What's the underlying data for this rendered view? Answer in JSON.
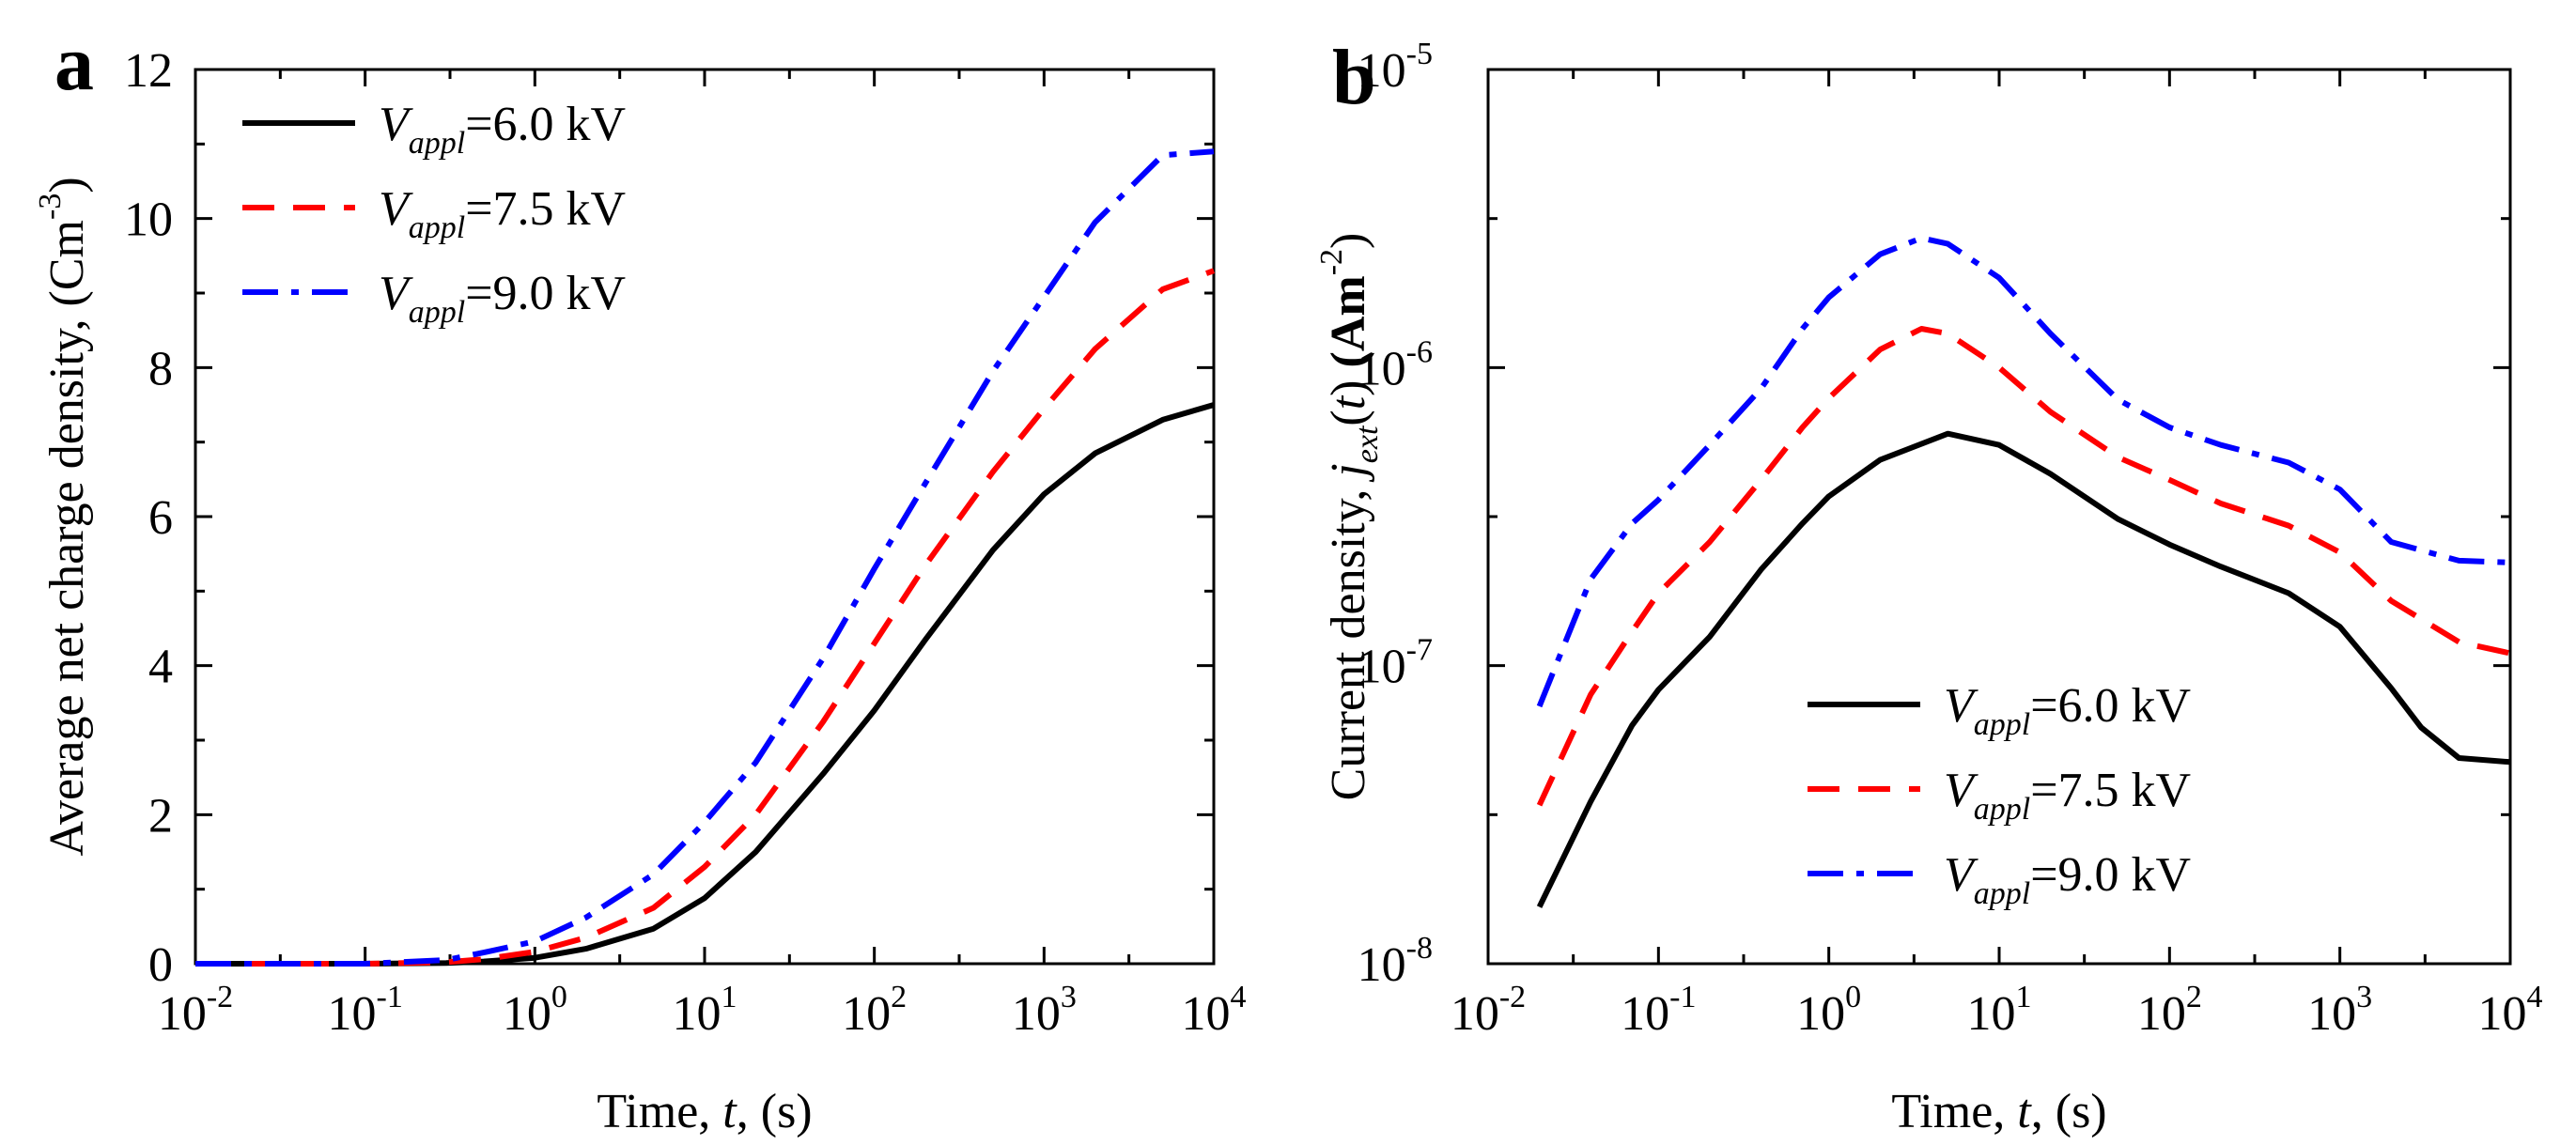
{
  "chart_data": [
    {
      "panel_label": "a",
      "type": "line",
      "xscale": "log",
      "xlim": [
        0.01,
        10000
      ],
      "ylim": [
        0,
        12
      ],
      "xticks": [
        {
          "value": 0.01,
          "base": "10",
          "exp": "-2"
        },
        {
          "value": 0.1,
          "base": "10",
          "exp": "-1"
        },
        {
          "value": 1,
          "base": "10",
          "exp": "0"
        },
        {
          "value": 10,
          "base": "10",
          "exp": "1"
        },
        {
          "value": 100,
          "base": "10",
          "exp": "2"
        },
        {
          "value": 1000,
          "base": "10",
          "exp": "3"
        },
        {
          "value": 10000,
          "base": "10",
          "exp": "4"
        }
      ],
      "yticks": [
        {
          "value": 0,
          "label": "0"
        },
        {
          "value": 2,
          "label": "2"
        },
        {
          "value": 4,
          "label": "4"
        },
        {
          "value": 6,
          "label": "6"
        },
        {
          "value": 8,
          "label": "8"
        },
        {
          "value": 10,
          "label": "10"
        },
        {
          "value": 12,
          "label": "12"
        }
      ],
      "xlabel": {
        "pre": "Time, ",
        "var": "t",
        "post": ", (s)"
      },
      "ylabel": {
        "pre": "Average net charge density, (Cm",
        "sup": "-3",
        "post": ")"
      },
      "legend_position": "top-left",
      "series": [
        {
          "name": {
            "var": "V",
            "sub": "appl",
            "rest": "=6.0 kV"
          },
          "color": "#000000",
          "dash": "solid",
          "x": [
            0.01,
            0.1,
            0.3,
            0.5,
            1,
            2,
            5,
            10,
            20,
            50,
            100,
            200,
            500,
            1000,
            2000,
            5000,
            10000
          ],
          "y": [
            0,
            0,
            0.01,
            0.03,
            0.08,
            0.2,
            0.47,
            0.88,
            1.5,
            2.55,
            3.4,
            4.35,
            5.55,
            6.3,
            6.85,
            7.3,
            7.5
          ]
        },
        {
          "name": {
            "var": "V",
            "sub": "appl",
            "rest": "=7.5 kV"
          },
          "color": "#ff0000",
          "dash": "dashed",
          "x": [
            0.01,
            0.1,
            0.3,
            0.5,
            1,
            2,
            5,
            10,
            20,
            50,
            100,
            200,
            500,
            1000,
            2000,
            5000,
            10000
          ],
          "y": [
            0,
            0,
            0.02,
            0.06,
            0.16,
            0.35,
            0.75,
            1.3,
            2.0,
            3.25,
            4.3,
            5.35,
            6.6,
            7.45,
            8.25,
            9.05,
            9.3
          ]
        },
        {
          "name": {
            "var": "V",
            "sub": "appl",
            "rest": "=9.0 kV"
          },
          "color": "#0000ff",
          "dash": "dashdot",
          "x": [
            0.01,
            0.1,
            0.3,
            0.5,
            1,
            2,
            5,
            10,
            20,
            50,
            100,
            200,
            500,
            1000,
            2000,
            5000,
            10000
          ],
          "y": [
            0,
            0,
            0.05,
            0.15,
            0.3,
            0.62,
            1.2,
            1.9,
            2.7,
            4.1,
            5.3,
            6.45,
            7.95,
            8.95,
            9.95,
            10.85,
            10.9
          ]
        }
      ]
    },
    {
      "panel_label": "b",
      "type": "line",
      "xscale": "log",
      "yscale": "log",
      "xlim": [
        0.01,
        10000
      ],
      "ylim": [
        1e-08,
        1e-05
      ],
      "xticks": [
        {
          "value": 0.01,
          "base": "10",
          "exp": "-2"
        },
        {
          "value": 0.1,
          "base": "10",
          "exp": "-1"
        },
        {
          "value": 1,
          "base": "10",
          "exp": "0"
        },
        {
          "value": 10,
          "base": "10",
          "exp": "1"
        },
        {
          "value": 100,
          "base": "10",
          "exp": "2"
        },
        {
          "value": 1000,
          "base": "10",
          "exp": "3"
        },
        {
          "value": 10000,
          "base": "10",
          "exp": "4"
        }
      ],
      "yticks": [
        {
          "value": 1e-08,
          "base": "10",
          "exp": "-8"
        },
        {
          "value": 1e-07,
          "base": "10",
          "exp": "-7"
        },
        {
          "value": 1e-06,
          "base": "10",
          "exp": "-6"
        },
        {
          "value": 1e-05,
          "base": "10",
          "exp": "-5"
        }
      ],
      "xlabel": {
        "pre": "Time, ",
        "var": "t",
        "post": ", (s)"
      },
      "ylabel": {
        "pre": "Current density, ",
        "var": "j",
        "sub": "ext",
        "paren_open": "(",
        "var2": "t",
        "paren_close": ")",
        "unit_pre": " (Am",
        "sup": "-2",
        "unit_post": ")"
      },
      "legend_position": "bottom-center",
      "series": [
        {
          "name": {
            "var": "V",
            "sub": "appl",
            "rest": "=6.0 kV"
          },
          "color": "#000000",
          "dash": "solid",
          "x": [
            0.02,
            0.04,
            0.07,
            0.1,
            0.2,
            0.4,
            0.7,
            1,
            2,
            5,
            10,
            20,
            50,
            100,
            200,
            500,
            1000,
            2000,
            3000,
            5000,
            10000
          ],
          "y": [
            1.55e-08,
            3.5e-08,
            6.3e-08,
            8.3e-08,
            1.25e-07,
            2.1e-07,
            3e-07,
            3.7e-07,
            4.9e-07,
            6e-07,
            5.5e-07,
            4.4e-07,
            3.1e-07,
            2.55e-07,
            2.15e-07,
            1.75e-07,
            1.35e-07,
            8.4e-08,
            6.2e-08,
            4.9e-08,
            4.75e-08
          ]
        },
        {
          "name": {
            "var": "V",
            "sub": "appl",
            "rest": "=7.5 kV"
          },
          "color": "#ff0000",
          "dash": "dashed",
          "x": [
            0.02,
            0.04,
            0.07,
            0.1,
            0.2,
            0.4,
            0.7,
            1,
            2,
            3.5,
            5,
            10,
            20,
            50,
            100,
            200,
            500,
            1000,
            2000,
            5000,
            10000
          ],
          "y": [
            3.4e-08,
            8e-08,
            1.3e-07,
            1.75e-07,
            2.6e-07,
            4.2e-07,
            6.3e-07,
            7.9e-07,
            1.15e-06,
            1.35e-06,
            1.3e-06,
            1e-06,
            7.1e-07,
            5e-07,
            4.2e-07,
            3.5e-07,
            2.95e-07,
            2.4e-07,
            1.65e-07,
            1.2e-07,
            1.1e-07
          ]
        },
        {
          "name": {
            "var": "V",
            "sub": "appl",
            "rest": "=9.0 kV"
          },
          "color": "#0000ff",
          "dash": "dashdot",
          "x": [
            0.02,
            0.04,
            0.07,
            0.1,
            0.2,
            0.4,
            0.7,
            1,
            2,
            3.5,
            5,
            10,
            20,
            50,
            100,
            200,
            500,
            1000,
            2000,
            5000,
            10000
          ],
          "y": [
            7.3e-08,
            1.95e-07,
            3e-07,
            3.6e-07,
            5.5e-07,
            8.5e-07,
            1.35e-06,
            1.72e-06,
            2.4e-06,
            2.72e-06,
            2.6e-06,
            2e-06,
            1.3e-06,
            7.8e-07,
            6.3e-07,
            5.5e-07,
            4.8e-07,
            3.9e-07,
            2.6e-07,
            2.25e-07,
            2.22e-07
          ]
        }
      ]
    }
  ]
}
